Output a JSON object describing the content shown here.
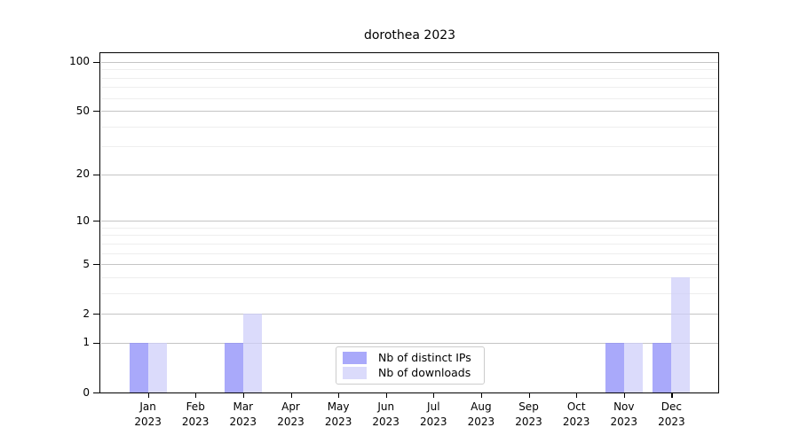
{
  "title": "dorothea 2023",
  "chart_data": {
    "type": "bar",
    "title": "dorothea 2023",
    "categories": [
      "Jan 2023",
      "Feb 2023",
      "Mar 2023",
      "Apr 2023",
      "May 2023",
      "Jun 2023",
      "Jul 2023",
      "Aug 2023",
      "Sep 2023",
      "Oct 2023",
      "Nov 2023",
      "Dec 2023"
    ],
    "series": [
      {
        "name": "Nb of distinct IPs",
        "color": "rgba(145,145,248,0.78)",
        "values": [
          1,
          0,
          1,
          0,
          0,
          0,
          0,
          0,
          0,
          0,
          1,
          1
        ]
      },
      {
        "name": "Nb of downloads",
        "color": "rgba(205,205,250,0.72)",
        "values": [
          1,
          0,
          2,
          0,
          0,
          0,
          0,
          0,
          0,
          0,
          1,
          4
        ]
      }
    ],
    "y_axis": {
      "tick_labels": [
        0,
        1,
        2,
        5,
        10,
        20,
        50,
        100
      ],
      "minor_gridlines": [
        3,
        4,
        6,
        7,
        8,
        9,
        30,
        40,
        60,
        70,
        80,
        90
      ],
      "scale": "log10(1+v)",
      "ylim": [
        0,
        113
      ]
    },
    "grid": {
      "major_color": "#c4c4c4",
      "minor_color": "#eeeeee"
    },
    "legend_position": "lower center",
    "xlabel": "",
    "ylabel": ""
  }
}
